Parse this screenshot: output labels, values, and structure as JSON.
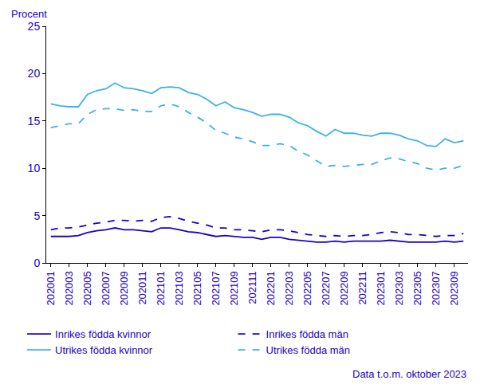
{
  "chart_data": {
    "type": "line",
    "y_label": "Procent",
    "note": "Data t.o.m. oktober 2023",
    "categories": [
      "202001",
      null,
      "202003",
      null,
      "202005",
      null,
      "202007",
      null,
      "202009",
      null,
      "202011",
      null,
      "202101",
      null,
      "202103",
      null,
      "202105",
      null,
      "202107",
      null,
      "202109",
      null,
      "202111",
      null,
      "202201",
      null,
      "202203",
      null,
      "202205",
      null,
      "202207",
      null,
      "202209",
      null,
      "202211",
      null,
      "202301",
      null,
      "202303",
      null,
      "202305",
      null,
      "202307",
      null,
      "202309",
      null
    ],
    "series": [
      {
        "name": "Inrikes födda kvinnor",
        "color": "#1e00be",
        "line_style": "solid",
        "values": [
          2.8,
          2.8,
          2.8,
          2.9,
          3.2,
          3.4,
          3.5,
          3.7,
          3.5,
          3.5,
          3.4,
          3.3,
          3.7,
          3.7,
          3.5,
          3.3,
          3.2,
          3.0,
          2.8,
          2.9,
          2.8,
          2.7,
          2.7,
          2.5,
          2.7,
          2.7,
          2.5,
          2.4,
          2.3,
          2.2,
          2.2,
          2.3,
          2.2,
          2.3,
          2.3,
          2.3,
          2.3,
          2.4,
          2.3,
          2.2,
          2.2,
          2.2,
          2.2,
          2.3,
          2.2,
          2.3
        ]
      },
      {
        "name": "Inrikes födda män",
        "color": "#1e00be",
        "line_style": "dash",
        "values": [
          3.5,
          3.7,
          3.7,
          3.8,
          4.0,
          4.2,
          4.3,
          4.5,
          4.5,
          4.4,
          4.5,
          4.4,
          4.8,
          4.9,
          4.7,
          4.4,
          4.2,
          4.0,
          3.7,
          3.7,
          3.5,
          3.5,
          3.4,
          3.3,
          3.5,
          3.5,
          3.4,
          3.2,
          3.0,
          2.9,
          2.8,
          2.9,
          2.8,
          2.9,
          2.9,
          3.0,
          3.2,
          3.3,
          3.2,
          3.0,
          3.0,
          2.9,
          2.8,
          2.9,
          2.9,
          3.1
        ]
      },
      {
        "name": "Utrikes födda kvinnor",
        "color": "#3fb1e3",
        "line_style": "solid",
        "values": [
          16.8,
          16.6,
          16.5,
          16.5,
          17.8,
          18.2,
          18.4,
          19.0,
          18.5,
          18.4,
          18.2,
          17.9,
          18.5,
          18.6,
          18.5,
          18.0,
          17.8,
          17.3,
          16.6,
          17.0,
          16.4,
          16.2,
          15.9,
          15.5,
          15.7,
          15.7,
          15.4,
          14.8,
          14.5,
          13.9,
          13.4,
          14.1,
          13.7,
          13.7,
          13.5,
          13.4,
          13.7,
          13.7,
          13.5,
          13.1,
          12.9,
          12.4,
          12.3,
          13.1,
          12.7,
          12.9
        ]
      },
      {
        "name": "Utrikes födda män",
        "color": "#3fb1e3",
        "line_style": "dash",
        "values": [
          14.3,
          14.5,
          14.7,
          14.7,
          15.7,
          16.2,
          16.3,
          16.3,
          16.1,
          16.2,
          16.0,
          16.0,
          16.6,
          16.8,
          16.5,
          15.9,
          15.4,
          14.8,
          14.0,
          13.7,
          13.3,
          13.1,
          12.8,
          12.4,
          12.4,
          12.6,
          12.4,
          11.8,
          11.4,
          10.8,
          10.2,
          10.3,
          10.2,
          10.3,
          10.4,
          10.4,
          10.8,
          11.1,
          11.0,
          10.7,
          10.5,
          10.0,
          9.8,
          10.0,
          10.0,
          10.3
        ]
      }
    ],
    "ylim": [
      0,
      25
    ],
    "yticks": [
      0,
      5,
      10,
      15,
      20,
      25
    ],
    "grid": false,
    "legend": "bottom"
  }
}
